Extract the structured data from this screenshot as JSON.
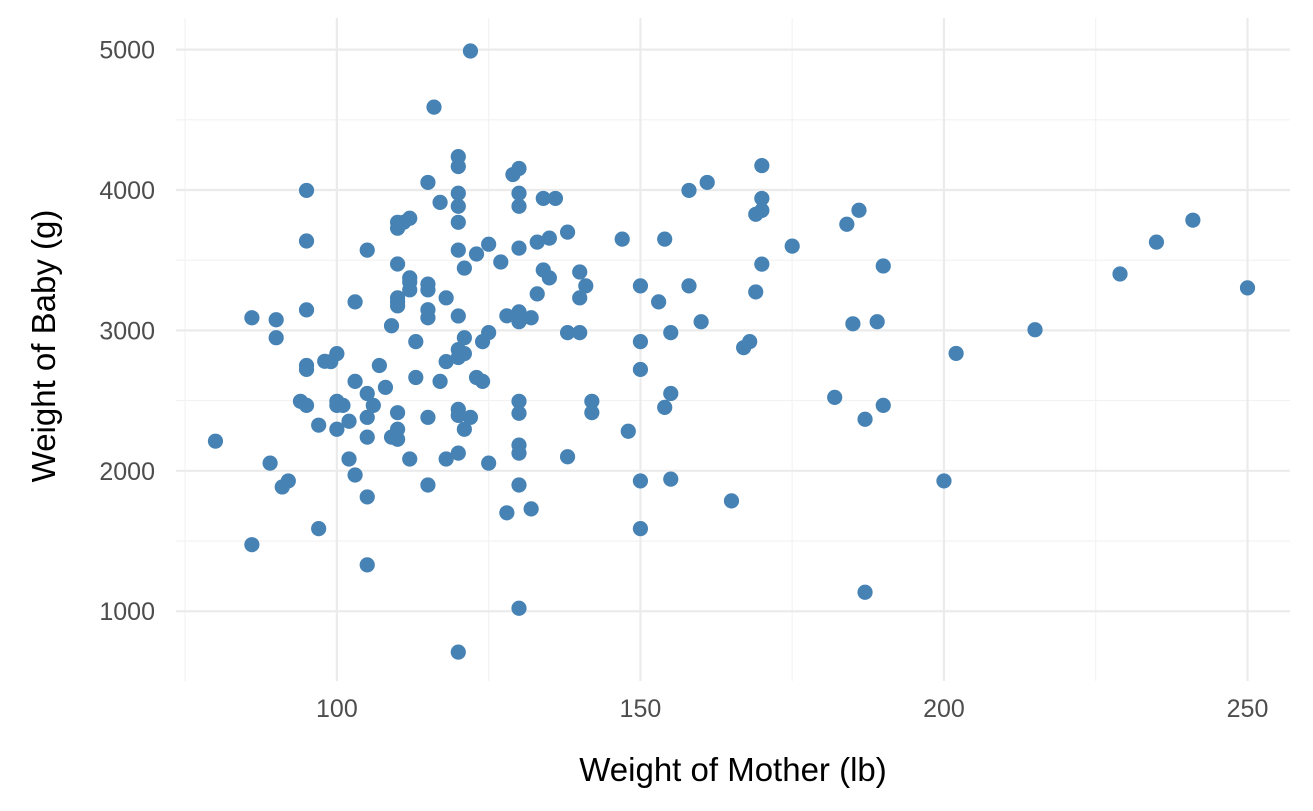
{
  "chart_data": {
    "type": "scatter",
    "title": "",
    "xlabel": "Weight of Mother (lb)",
    "ylabel": "Weight of Baby (g)",
    "xlim": [
      73.5,
      257
    ],
    "ylim": [
      503,
      5225
    ],
    "x_ticks": [
      100,
      150,
      200,
      250
    ],
    "y_ticks": [
      1000,
      2000,
      3000,
      4000,
      5000
    ],
    "x_tick_labels": [
      "100",
      "150",
      "200",
      "250"
    ],
    "y_tick_labels": [
      "1000",
      "2000",
      "3000",
      "4000",
      "5000"
    ],
    "x_minor_ticks": [
      75,
      125,
      175,
      225
    ],
    "y_minor_ticks": [
      1500,
      2500,
      3500,
      4500
    ],
    "grid": true,
    "legend": "none",
    "point_color": "#4682B4",
    "points": [
      [
        122,
        4990
      ],
      [
        116,
        4590
      ],
      [
        120,
        4238
      ],
      [
        130,
        4153
      ],
      [
        129,
        4110
      ],
      [
        120,
        4167
      ],
      [
        170,
        4174
      ],
      [
        115,
        4054
      ],
      [
        161,
        4054
      ],
      [
        158,
        3997
      ],
      [
        95,
        3997
      ],
      [
        130,
        3977
      ],
      [
        120,
        3977
      ],
      [
        134,
        3940
      ],
      [
        136,
        3940
      ],
      [
        170,
        3940
      ],
      [
        117,
        3912
      ],
      [
        130,
        3884
      ],
      [
        120,
        3884
      ],
      [
        186,
        3856
      ],
      [
        170,
        3855
      ],
      [
        169,
        3827
      ],
      [
        112,
        3799
      ],
      [
        110,
        3770
      ],
      [
        111,
        3770
      ],
      [
        120,
        3770
      ],
      [
        184,
        3756
      ],
      [
        241,
        3785
      ],
      [
        110,
        3728
      ],
      [
        138,
        3700
      ],
      [
        135,
        3657
      ],
      [
        154,
        3650
      ],
      [
        147,
        3650
      ],
      [
        95,
        3637
      ],
      [
        133,
        3629
      ],
      [
        235,
        3629
      ],
      [
        125,
        3614
      ],
      [
        175,
        3600
      ],
      [
        130,
        3586
      ],
      [
        120,
        3572
      ],
      [
        105,
        3572
      ],
      [
        123,
        3544
      ],
      [
        127,
        3487
      ],
      [
        170,
        3472
      ],
      [
        110,
        3473
      ],
      [
        190,
        3459
      ],
      [
        121,
        3444
      ],
      [
        134,
        3430
      ],
      [
        140,
        3416
      ],
      [
        229,
        3402
      ],
      [
        135,
        3374
      ],
      [
        112,
        3374
      ],
      [
        112,
        3345
      ],
      [
        115,
        3330
      ],
      [
        141,
        3317
      ],
      [
        158,
        3317
      ],
      [
        150,
        3317
      ],
      [
        115,
        3289
      ],
      [
        112,
        3289
      ],
      [
        250,
        3303
      ],
      [
        133,
        3260
      ],
      [
        140,
        3232
      ],
      [
        110,
        3232
      ],
      [
        118,
        3232
      ],
      [
        169,
        3274
      ],
      [
        110,
        3203
      ],
      [
        103,
        3203
      ],
      [
        153,
        3203
      ],
      [
        110,
        3175
      ],
      [
        115,
        3147
      ],
      [
        95,
        3146
      ],
      [
        130,
        3132
      ],
      [
        128,
        3104
      ],
      [
        120,
        3103
      ],
      [
        132,
        3090
      ],
      [
        130,
        3090
      ],
      [
        86,
        3090
      ],
      [
        90,
        3076
      ],
      [
        115,
        3090
      ],
      [
        130,
        3062
      ],
      [
        189,
        3062
      ],
      [
        160,
        3062
      ],
      [
        185,
        3047
      ],
      [
        109,
        3033
      ],
      [
        215,
        3005
      ],
      [
        125,
        2984
      ],
      [
        140,
        2984
      ],
      [
        138,
        2984
      ],
      [
        155,
        2984
      ],
      [
        121,
        2948
      ],
      [
        90,
        2948
      ],
      [
        113,
        2920
      ],
      [
        150,
        2920
      ],
      [
        168,
        2920
      ],
      [
        124,
        2920
      ],
      [
        167,
        2877
      ],
      [
        120,
        2863
      ],
      [
        121,
        2835
      ],
      [
        100,
        2835
      ],
      [
        202,
        2836
      ],
      [
        120,
        2807
      ],
      [
        99,
        2778
      ],
      [
        118,
        2778
      ],
      [
        98,
        2780
      ],
      [
        95,
        2750
      ],
      [
        107,
        2750
      ],
      [
        95,
        2722
      ],
      [
        150,
        2722
      ],
      [
        123,
        2665
      ],
      [
        113,
        2665
      ],
      [
        124,
        2637
      ],
      [
        103,
        2637
      ],
      [
        117,
        2637
      ],
      [
        108,
        2594
      ],
      [
        105,
        2551
      ],
      [
        155,
        2551
      ],
      [
        94,
        2495
      ],
      [
        100,
        2495
      ],
      [
        130,
        2495
      ],
      [
        142,
        2495
      ],
      [
        182,
        2523
      ],
      [
        100,
        2466
      ],
      [
        101,
        2466
      ],
      [
        95,
        2466
      ],
      [
        106,
        2466
      ],
      [
        190,
        2466
      ],
      [
        154,
        2452
      ],
      [
        120,
        2438
      ],
      [
        142,
        2414
      ],
      [
        110,
        2414
      ],
      [
        130,
        2410
      ],
      [
        122,
        2381
      ],
      [
        105,
        2381
      ],
      [
        115,
        2381
      ],
      [
        120,
        2395
      ],
      [
        187,
        2367
      ],
      [
        102,
        2353
      ],
      [
        97,
        2325
      ],
      [
        121,
        2296
      ],
      [
        148,
        2282
      ],
      [
        100,
        2296
      ],
      [
        110,
        2296
      ],
      [
        109,
        2240
      ],
      [
        105,
        2240
      ],
      [
        110,
        2225
      ],
      [
        80,
        2211
      ],
      [
        130,
        2183
      ],
      [
        120,
        2126
      ],
      [
        130,
        2126
      ],
      [
        138,
        2100
      ],
      [
        112,
        2084
      ],
      [
        118,
        2084
      ],
      [
        102,
        2084
      ],
      [
        125,
        2055
      ],
      [
        89,
        2055
      ],
      [
        103,
        1970
      ],
      [
        92,
        1928
      ],
      [
        91,
        1885
      ],
      [
        130,
        1899
      ],
      [
        150,
        1928
      ],
      [
        155,
        1941
      ],
      [
        115,
        1899
      ],
      [
        200,
        1928
      ],
      [
        105,
        1814
      ],
      [
        165,
        1786
      ],
      [
        132,
        1729
      ],
      [
        128,
        1701
      ],
      [
        97,
        1588
      ],
      [
        150,
        1588
      ],
      [
        86,
        1474
      ],
      [
        105,
        1330
      ],
      [
        187,
        1135
      ],
      [
        130,
        1021
      ],
      [
        120,
        709
      ]
    ]
  }
}
